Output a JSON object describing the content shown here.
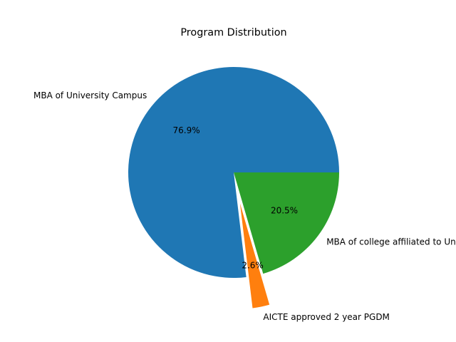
{
  "chart_data": {
    "type": "pie",
    "title": "Program Distribution",
    "slices": [
      {
        "label": "MBA of University Campus",
        "value": 76.9,
        "pct_label": "76.9%",
        "color": "#1f77b4",
        "explode": 0
      },
      {
        "label": "AICTE approved 2 year PGDM",
        "value": 2.6,
        "pct_label": "2.6%",
        "color": "#ff7f0e",
        "explode": 0.3
      },
      {
        "label": "MBA of college affiliated to University",
        "value": 20.5,
        "pct_label": "20.5%",
        "color": "#2ca02c",
        "explode": 0
      }
    ],
    "start_angle_deg": 0,
    "direction": "counterclockwise",
    "legend": "none",
    "grid": false
  }
}
